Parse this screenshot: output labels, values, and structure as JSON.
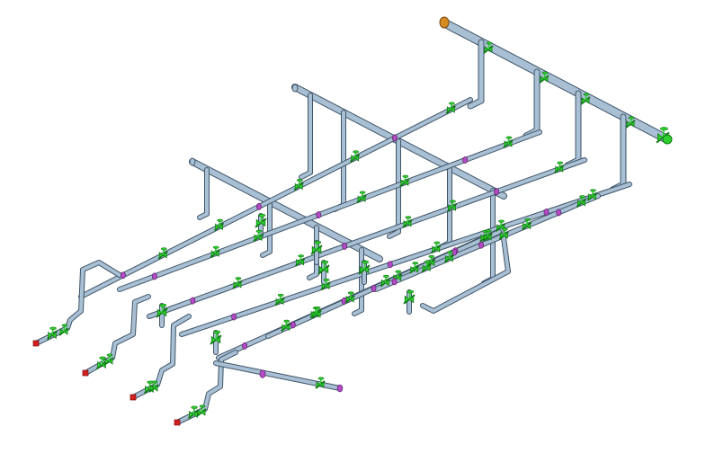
{
  "colors": {
    "background": "#ffffff",
    "pipe_body": "#a9bfd3",
    "pipe_outline": "#3f5568",
    "valve": "#2fcf2f",
    "valve_dark": "#0e7a12",
    "flange": "#b24bc4",
    "flange_dark": "#5e1f6a",
    "end_cap": "#d42020",
    "nozzle_ring": "#d68a22"
  }
}
